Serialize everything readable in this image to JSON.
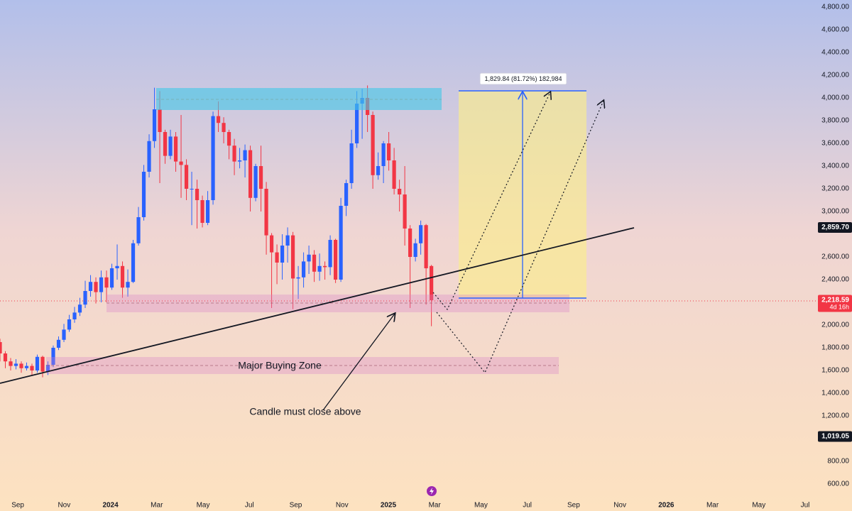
{
  "chart_data": {
    "type": "candlestick",
    "up_color": "#2962ff",
    "down_color": "#f23645",
    "x": [
      -0.77,
      -0.54,
      -0.31,
      -0.08,
      0.15,
      0.38,
      0.61,
      0.84,
      1.07,
      1.3,
      1.53,
      1.76,
      1.99,
      2.22,
      2.45,
      2.68,
      2.91,
      3.14,
      3.37,
      3.6,
      3.83,
      4.06,
      4.29,
      4.52,
      4.75,
      4.98,
      5.21,
      5.44,
      5.67,
      5.9,
      6.13,
      6.36,
      6.59,
      6.82,
      7.05,
      7.28,
      7.51,
      7.74,
      7.97,
      8.2,
      8.43,
      8.66,
      8.89,
      9.12,
      9.35,
      9.58,
      9.81,
      10.04,
      10.27,
      10.5,
      10.73,
      10.96,
      11.19,
      11.42,
      11.65,
      11.88,
      12.11,
      12.34,
      12.57,
      12.8,
      13.03,
      13.26,
      13.49,
      13.72,
      13.95,
      14.18,
      14.41,
      14.64,
      14.87,
      15.1,
      15.33,
      15.56,
      15.79,
      16.02,
      16.25,
      16.48,
      16.71,
      16.94,
      17.17,
      17.4,
      17.63,
      17.86
    ],
    "open": [
      1850,
      1750,
      1680,
      1640,
      1660,
      1620,
      1640,
      1600,
      1720,
      1590,
      1650,
      1800,
      1870,
      1960,
      2050,
      2110,
      2180,
      2300,
      2380,
      2290,
      2420,
      2330,
      2500,
      2520,
      2330,
      2380,
      2720,
      2950,
      3350,
      3620,
      3900,
      3700,
      3490,
      3660,
      3440,
      3410,
      3200,
      3200,
      3100,
      2900,
      3100,
      3840,
      3780,
      3700,
      3580,
      3440,
      3450,
      3540,
      3120,
      3400,
      3200,
      2790,
      2640,
      2550,
      2700,
      2790,
      2410,
      2420,
      2560,
      2620,
      2470,
      2520,
      2510,
      2750,
      2400,
      3050,
      3250,
      3600,
      3950,
      4000,
      3850,
      3320,
      3400,
      3600,
      3450,
      3200,
      3150,
      2850,
      2600,
      2720,
      2880,
      2520
    ],
    "high": [
      1880,
      1770,
      1710,
      1700,
      1680,
      1670,
      1660,
      1740,
      1730,
      1680,
      1820,
      1900,
      2010,
      2090,
      2160,
      2240,
      2390,
      2440,
      2420,
      2480,
      2480,
      2540,
      2710,
      2560,
      2490,
      2750,
      3040,
      3410,
      3680,
      4090,
      4060,
      3720,
      3720,
      3700,
      3850,
      3460,
      3350,
      3280,
      3140,
      3180,
      3880,
      3970,
      3830,
      3720,
      3640,
      3560,
      3590,
      3580,
      3420,
      3580,
      3260,
      2810,
      2710,
      2800,
      2860,
      2820,
      2520,
      2640,
      2700,
      2660,
      2630,
      2560,
      2790,
      2760,
      3120,
      3280,
      3720,
      4060,
      4080,
      4110,
      3880,
      3520,
      3620,
      3700,
      3560,
      3280,
      3400,
      2880,
      2760,
      2920,
      2890,
      2530
    ],
    "low": [
      1680,
      1620,
      1600,
      1610,
      1580,
      1600,
      1560,
      1580,
      1540,
      1560,
      1630,
      1780,
      1850,
      1940,
      2020,
      2080,
      2150,
      2250,
      2190,
      2200,
      2200,
      2310,
      2400,
      2240,
      2250,
      2370,
      2700,
      2920,
      3300,
      3560,
      3250,
      3420,
      3460,
      3350,
      3120,
      3100,
      2880,
      2850,
      2860,
      2880,
      3060,
      3700,
      3600,
      3460,
      3320,
      3380,
      3300,
      3000,
      3090,
      3000,
      2620,
      2150,
      2360,
      2400,
      2550,
      2140,
      2230,
      2330,
      2450,
      2380,
      2390,
      2400,
      2440,
      2370,
      2380,
      2960,
      3200,
      3560,
      3640,
      3700,
      3200,
      3280,
      3250,
      3360,
      3150,
      3000,
      2700,
      2150,
      2560,
      2620,
      2180,
      1990
    ],
    "close": [
      1750,
      1680,
      1640,
      1660,
      1620,
      1640,
      1600,
      1720,
      1590,
      1650,
      1800,
      1870,
      1960,
      2050,
      2110,
      2180,
      2300,
      2380,
      2290,
      2420,
      2330,
      2500,
      2520,
      2330,
      2380,
      2720,
      2950,
      3350,
      3620,
      3900,
      3700,
      3490,
      3660,
      3440,
      3410,
      3200,
      3200,
      3100,
      2900,
      3100,
      3840,
      3780,
      3700,
      3580,
      3440,
      3450,
      3540,
      3120,
      3400,
      3200,
      2790,
      2640,
      2550,
      2700,
      2790,
      2410,
      2420,
      2560,
      2620,
      2470,
      2520,
      2510,
      2750,
      2400,
      3050,
      3250,
      3600,
      3950,
      4000,
      3850,
      3320,
      3400,
      3600,
      3450,
      3200,
      3150,
      2850,
      2600,
      2720,
      2880,
      2500,
      2218.59
    ],
    "xlim": [
      -0.77,
      34.49
    ],
    "xticks": [
      {
        "value": 0,
        "label": "Sep"
      },
      {
        "value": 2,
        "label": "Nov"
      },
      {
        "value": 4,
        "label": "2024"
      },
      {
        "value": 6,
        "label": "Mar"
      },
      {
        "value": 8,
        "label": "May"
      },
      {
        "value": 10,
        "label": "Jul"
      },
      {
        "value": 12,
        "label": "Sep"
      },
      {
        "value": 14,
        "label": "Nov"
      },
      {
        "value": 16,
        "label": "2025"
      },
      {
        "value": 18,
        "label": "Mar"
      },
      {
        "value": 20,
        "label": "May"
      },
      {
        "value": 22,
        "label": "Jul"
      },
      {
        "value": 24,
        "label": "Sep"
      },
      {
        "value": 26,
        "label": "Nov"
      },
      {
        "value": 28,
        "label": "2026"
      },
      {
        "value": 30,
        "label": "Mar"
      },
      {
        "value": 32,
        "label": "May"
      },
      {
        "value": 34,
        "label": "Jul"
      }
    ],
    "ylim": [
      487.5,
      4862.5
    ],
    "yticks": [
      {
        "value": 600,
        "label": "600.00"
      },
      {
        "value": 800,
        "label": "800.00"
      },
      {
        "value": 1200,
        "label": "1,200.00"
      },
      {
        "value": 1400,
        "label": "1,400.00"
      },
      {
        "value": 1600,
        "label": "1,600.00"
      },
      {
        "value": 1800,
        "label": "1,800.00"
      },
      {
        "value": 2000,
        "label": "2,000.00"
      },
      {
        "value": 2400,
        "label": "2,400.00"
      },
      {
        "value": 2600,
        "label": "2,600.00"
      },
      {
        "value": 3000,
        "label": "3,000.00"
      },
      {
        "value": 3200,
        "label": "3,200.00"
      },
      {
        "value": 3400,
        "label": "3,400.00"
      },
      {
        "value": 3600,
        "label": "3,600.00"
      },
      {
        "value": 3800,
        "label": "3,800.00"
      },
      {
        "value": 4000,
        "label": "4,000.00"
      },
      {
        "value": 4200,
        "label": "4,200.00"
      },
      {
        "value": 4400,
        "label": "4,400.00"
      },
      {
        "value": 4600,
        "label": "4,600.00"
      },
      {
        "value": 4800,
        "label": "4,800.00"
      }
    ],
    "price_markers": [
      {
        "value": 2859.7,
        "label": "2,859.70",
        "color": "#131722"
      },
      {
        "value": 2218.59,
        "label": "2,218.59",
        "countdown": "4d 16h",
        "color": "#f23645"
      },
      {
        "value": 1019.05,
        "label": "1,019.05",
        "color": "#131722"
      }
    ],
    "annotations": [
      "Major Buying Zone",
      "Candle must close above",
      "1,829.84 (81.72%) 182,984"
    ]
  }
}
